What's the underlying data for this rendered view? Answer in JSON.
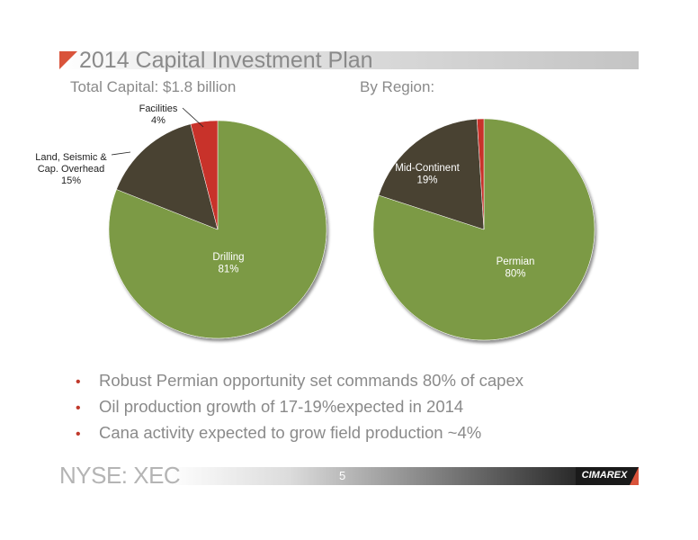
{
  "title": "2014 Capital Investment Plan",
  "left_subtitle": "Total Capital: $1.8 billion",
  "right_subtitle": "By Region:",
  "bullets": [
    "Robust Permian opportunity set commands 80% of capex",
    "Oil production growth of 17-19%expected in 2014",
    "Cana activity expected to grow field production ~4%"
  ],
  "footer": {
    "ticker": "NYSE: XEC",
    "page": "5",
    "logo": "CIMAREX"
  },
  "colors": {
    "accent": "#d9533a",
    "green": "#7b9a45",
    "dark": "#4a4230",
    "red": "#c8302b",
    "text": "#8a8a8a"
  },
  "chart_data": [
    {
      "type": "pie",
      "title": "",
      "slices": [
        {
          "label": "Drilling",
          "value": 81,
          "display": "81%",
          "color": "#7b9a45"
        },
        {
          "label": "Land, Seismic & Cap. Overhead",
          "value": 15,
          "display": "15%",
          "color": "#4a4230"
        },
        {
          "label": "Facilities",
          "value": 4,
          "display": "4%",
          "color": "#c8302b"
        }
      ]
    },
    {
      "type": "pie",
      "title": "",
      "slices": [
        {
          "label": "Permian",
          "value": 80,
          "display": "80%",
          "color": "#7b9a45"
        },
        {
          "label": "Mid-Continent",
          "value": 19,
          "display": "19%",
          "color": "#4a4230"
        },
        {
          "label": "",
          "value": 1,
          "display": "",
          "color": "#c8302b"
        }
      ]
    }
  ]
}
